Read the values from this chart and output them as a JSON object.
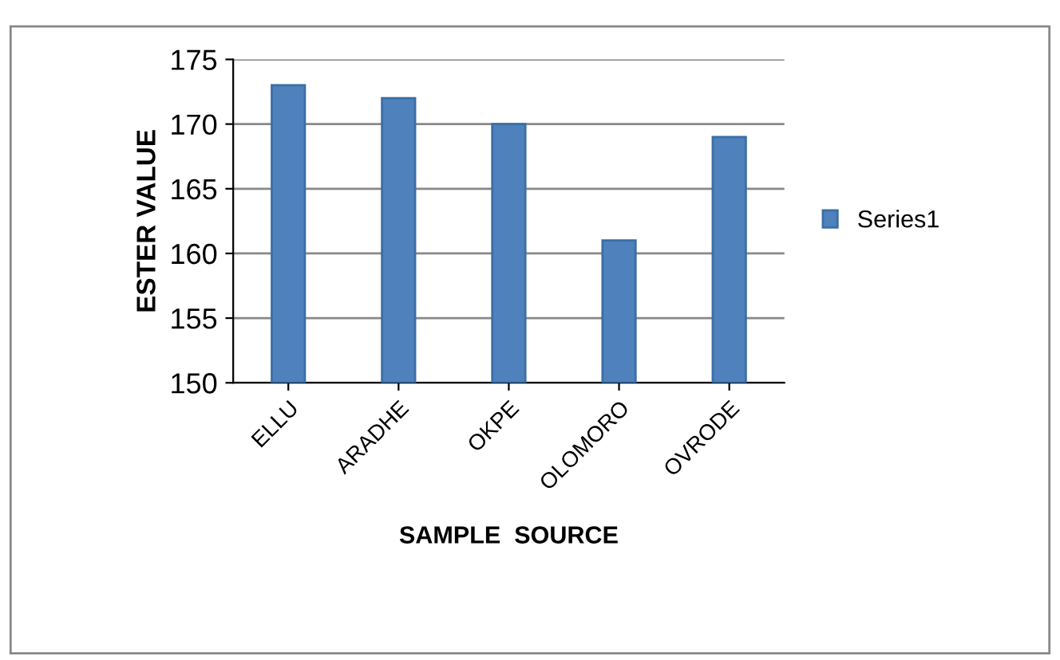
{
  "chart_data": {
    "type": "bar",
    "xlabel": "SAMPLE  SOURCE",
    "ylabel": "ESTER VALUE",
    "categories": [
      "ELLU",
      "ARADHE",
      "OKPE",
      "OLOMORO",
      "OVRODE"
    ],
    "series": [
      {
        "name": "Series1",
        "color": "#4f81bd",
        "values": [
          173,
          172,
          170,
          161,
          169
        ]
      }
    ],
    "ylim": [
      150,
      175
    ],
    "yticks": [
      150,
      155,
      160,
      165,
      170,
      175
    ],
    "grid": "y",
    "legend": "right"
  }
}
